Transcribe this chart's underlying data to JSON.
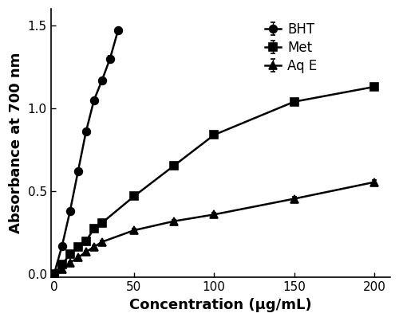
{
  "title": "",
  "xlabel": "Concentration (μg/mL)",
  "ylabel": "Absorbance at 700 nm",
  "xlim": [
    -2,
    210
  ],
  "ylim": [
    -0.02,
    1.6
  ],
  "xticks": [
    0,
    50,
    100,
    150,
    200
  ],
  "yticks": [
    0.0,
    0.5,
    1.0,
    1.5
  ],
  "BHT": {
    "x": [
      0,
      5,
      10,
      15,
      20,
      25,
      30,
      35,
      40
    ],
    "y": [
      0.0,
      0.17,
      0.38,
      0.62,
      0.86,
      1.05,
      1.17,
      1.3,
      1.47
    ],
    "yerr": [
      0.004,
      0.008,
      0.01,
      0.012,
      0.015,
      0.015,
      0.015,
      0.015,
      0.015
    ],
    "label": "BHT",
    "marker": "o"
  },
  "Met": {
    "x": [
      0,
      5,
      10,
      15,
      20,
      25,
      30,
      50,
      75,
      100,
      150,
      200
    ],
    "y": [
      0.0,
      0.06,
      0.12,
      0.165,
      0.2,
      0.275,
      0.31,
      0.47,
      0.655,
      0.84,
      1.04,
      1.13
    ],
    "yerr": [
      0.004,
      0.006,
      0.008,
      0.008,
      0.008,
      0.01,
      0.01,
      0.012,
      0.015,
      0.018,
      0.018,
      0.018
    ],
    "label": "Met",
    "marker": "s"
  },
  "AqE": {
    "x": [
      0,
      5,
      10,
      15,
      20,
      25,
      30,
      50,
      75,
      100,
      150,
      200
    ],
    "y": [
      0.0,
      0.03,
      0.07,
      0.1,
      0.135,
      0.165,
      0.195,
      0.265,
      0.32,
      0.36,
      0.455,
      0.555
    ],
    "yerr": [
      0.003,
      0.004,
      0.005,
      0.006,
      0.008,
      0.008,
      0.008,
      0.01,
      0.01,
      0.012,
      0.012,
      0.015
    ],
    "label": "Aq E",
    "marker": "^"
  },
  "background_color": "#ffffff",
  "spine_color": "#000000",
  "tick_fontsize": 11,
  "label_fontsize": 13,
  "legend_fontsize": 12,
  "linewidth": 1.8,
  "markersize": 7,
  "capsize": 2,
  "elinewidth": 1.0
}
